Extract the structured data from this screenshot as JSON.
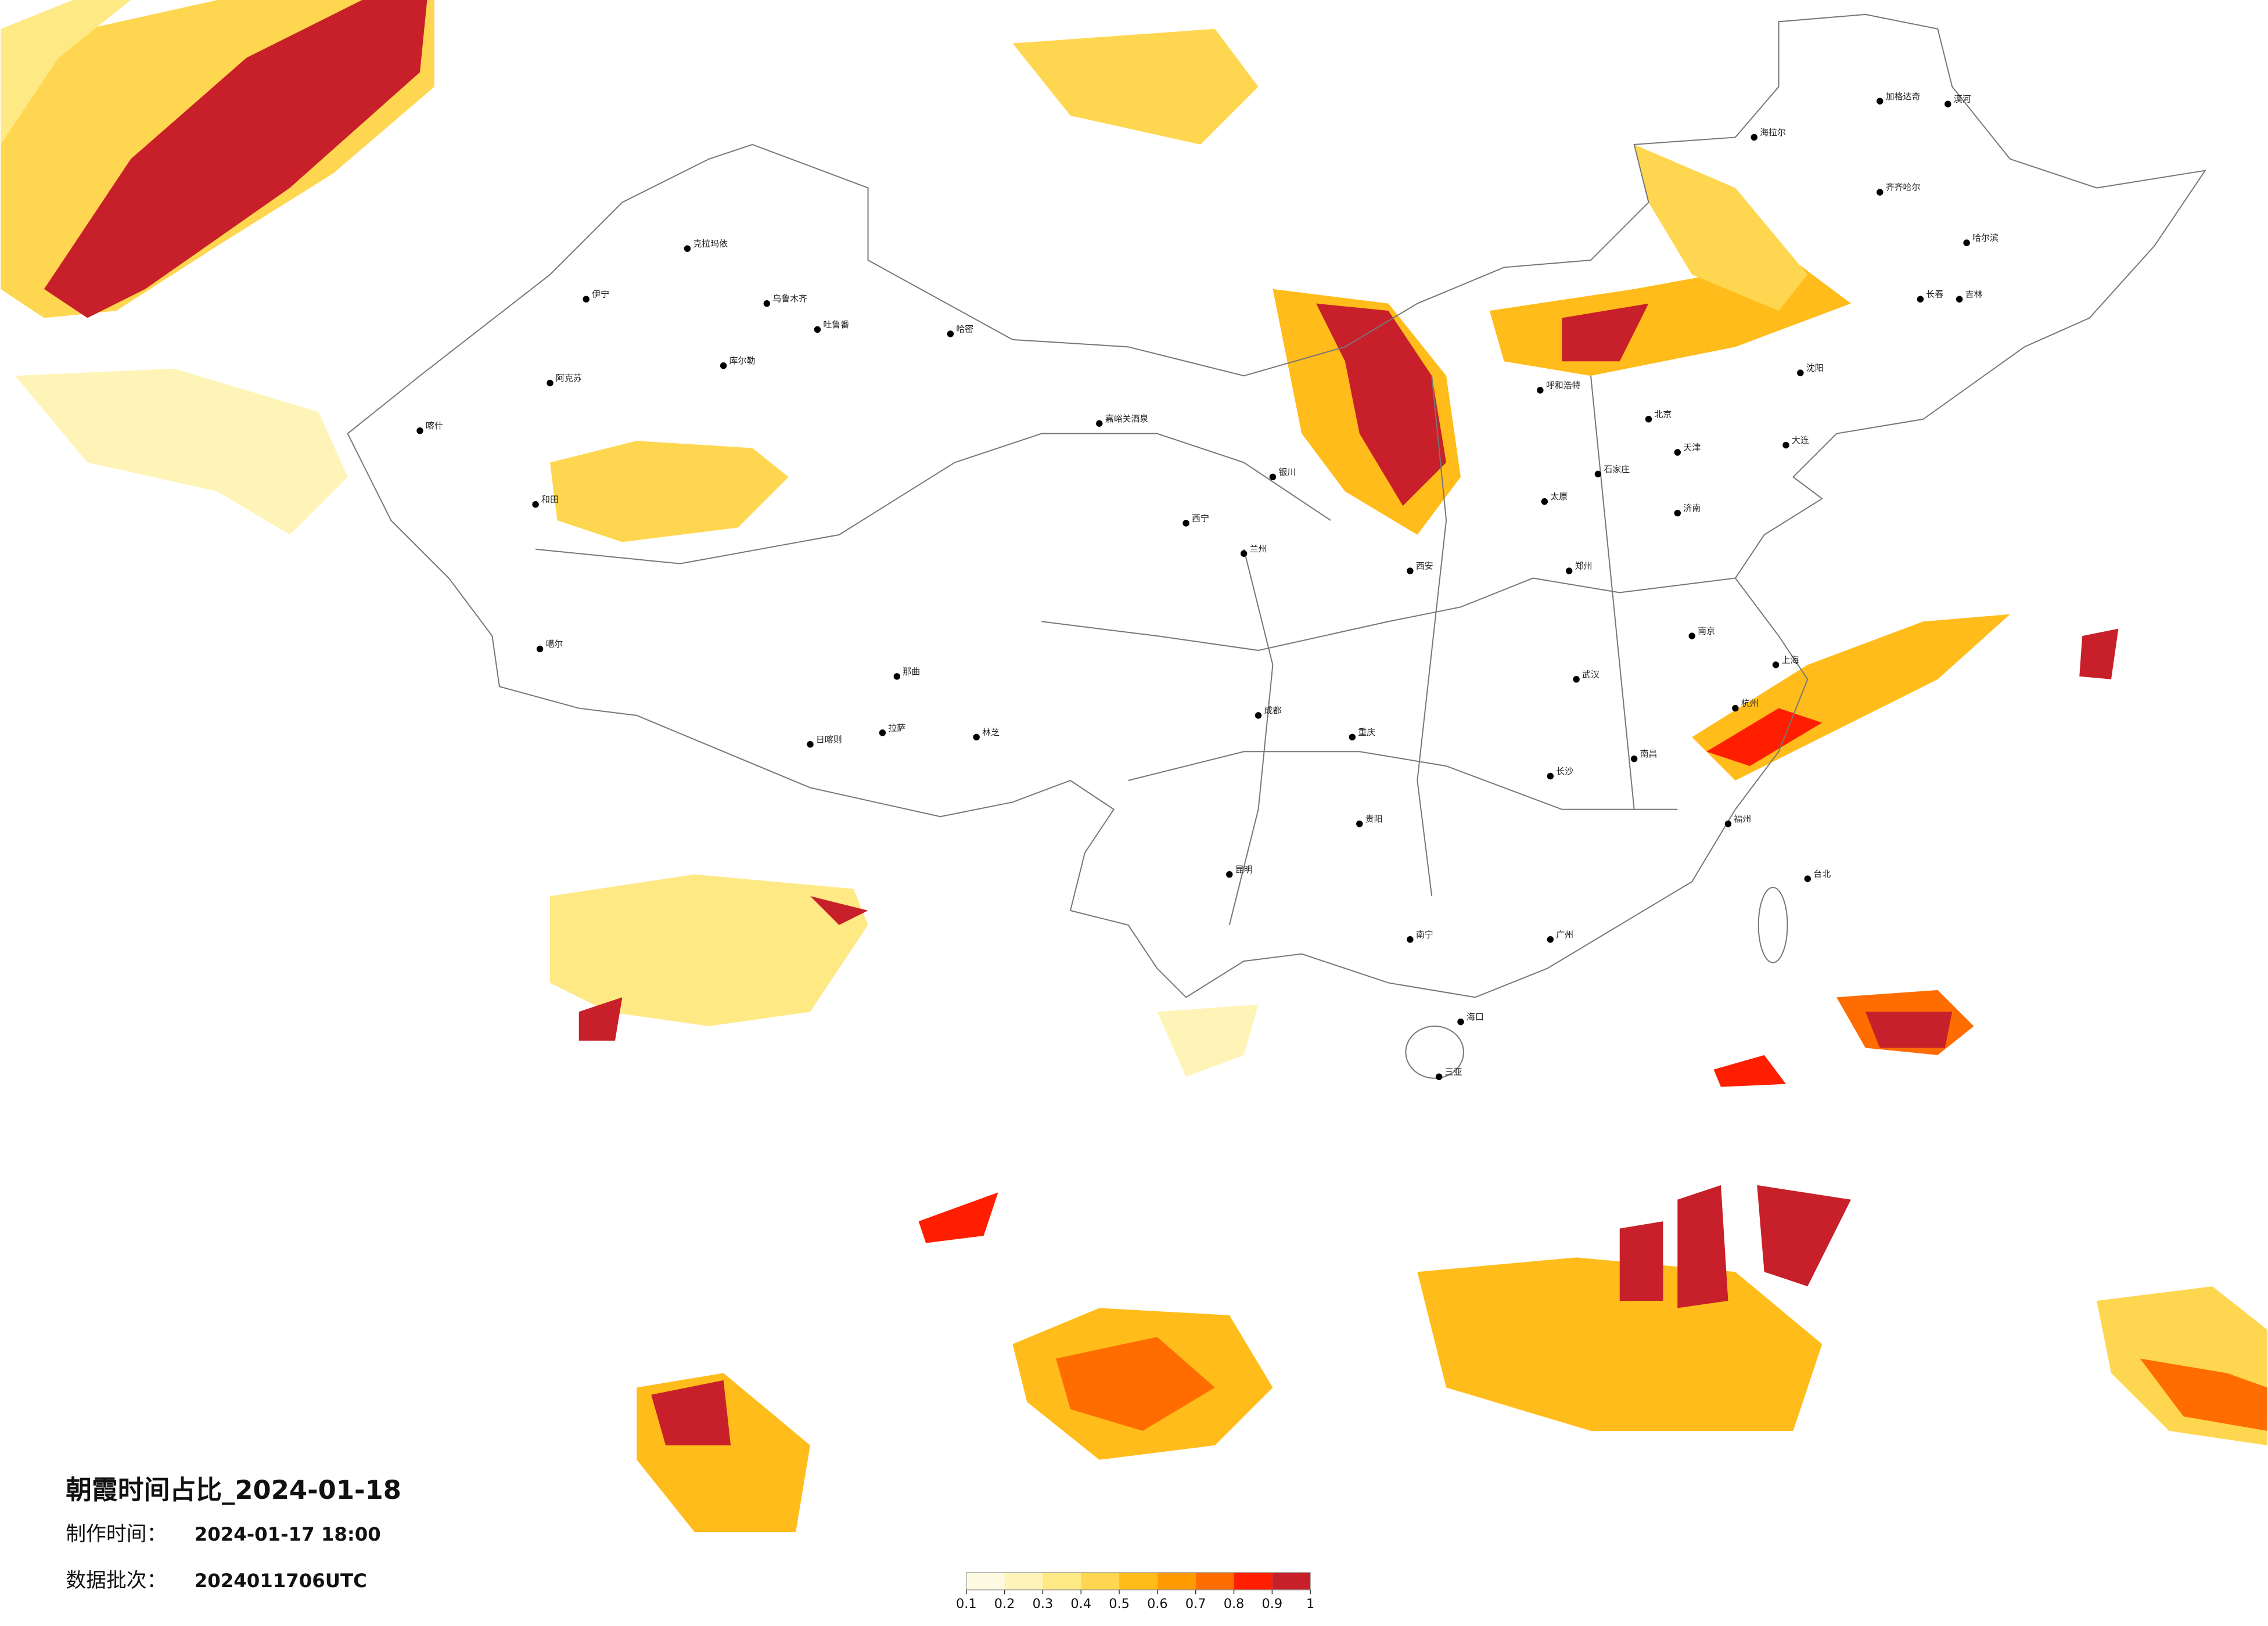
{
  "title": "朝霞时间占比_2024-01-18",
  "made_label": "制作时间：",
  "made_value": "2024-01-17 18:00",
  "batch_label": "数据批次：",
  "batch_value": "2024011706UTC",
  "colorbar": {
    "ticks": [
      0.1,
      0.2,
      0.3,
      0.4,
      0.5,
      0.6,
      0.7,
      0.8,
      0.9,
      1
    ],
    "colors": [
      "#fffbe3",
      "#fff4b8",
      "#ffe985",
      "#ffd64f",
      "#ffbc1a",
      "#ff9a00",
      "#ff6d00",
      "#ff1f00",
      "#c8202a"
    ]
  },
  "cities": [
    "漠河",
    "加格达奇",
    "海拉尔",
    "齐齐哈尔",
    "哈尔滨",
    "长春",
    "吉林",
    "沈阳",
    "大连",
    "克拉玛依",
    "伊宁",
    "乌鲁木齐",
    "吐鲁番",
    "哈密",
    "库尔勒",
    "阿克苏",
    "喀什",
    "和田",
    "噶尔",
    "日喀则",
    "拉萨",
    "林芝",
    "那曲",
    "嘉峪关酒泉",
    "西宁",
    "兰州",
    "银川",
    "呼和浩特",
    "北京",
    "天津",
    "石家庄",
    "太原",
    "济南",
    "郑州",
    "西安",
    "成都",
    "重庆",
    "武汉",
    "南京",
    "上海",
    "杭州",
    "长沙",
    "南昌",
    "福州",
    "贵阳",
    "昆明",
    "南宁",
    "广州",
    "海口",
    "三亚",
    "台北"
  ]
}
